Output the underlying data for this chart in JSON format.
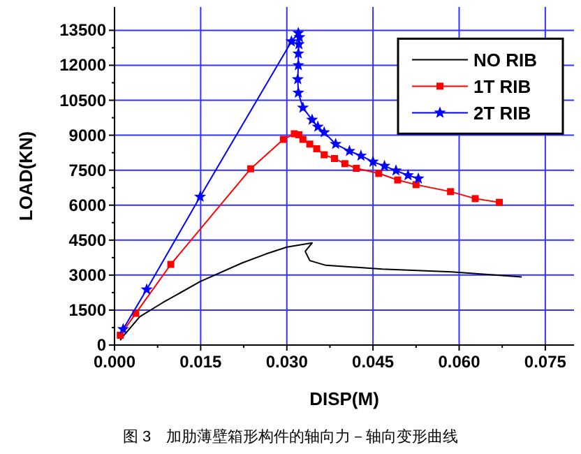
{
  "chart_data": {
    "type": "line",
    "xlabel": "DISP(M)",
    "ylabel": "LOAD(KN)",
    "xlim": [
      0,
      0.08
    ],
    "ylim": [
      0,
      14500
    ],
    "xticks": [
      {
        "value": 0,
        "label": "0.000"
      },
      {
        "value": 0.0075,
        "label": null
      },
      {
        "value": 0.015,
        "label": "0.015"
      },
      {
        "value": 0.0225,
        "label": null
      },
      {
        "value": 0.03,
        "label": "0.030"
      },
      {
        "value": 0.0375,
        "label": null
      },
      {
        "value": 0.045,
        "label": "0.045"
      },
      {
        "value": 0.0525,
        "label": null
      },
      {
        "value": 0.06,
        "label": "0.060"
      },
      {
        "value": 0.0675,
        "label": null
      },
      {
        "value": 0.075,
        "label": "0.075"
      }
    ],
    "yticks": [
      0,
      {
        "value": 750,
        "label": null
      },
      1500,
      {
        "value": 2250,
        "label": null
      },
      3000,
      {
        "value": 3750,
        "label": null
      },
      4500,
      {
        "value": 5250,
        "label": null
      },
      6000,
      {
        "value": 6750,
        "label": null
      },
      7500,
      {
        "value": 8250,
        "label": null
      },
      9000,
      {
        "value": 9750,
        "label": null
      },
      10500,
      {
        "value": 11250,
        "label": null
      },
      12000,
      {
        "value": 12750,
        "label": null
      },
      13500
    ],
    "grid": true,
    "legend": "top right",
    "series": [
      {
        "name": "NO RIB",
        "color": "#000000",
        "marker": "none",
        "x": [
          0.001,
          0.0013,
          0.0044,
          0.0084,
          0.0149,
          0.0222,
          0.0263,
          0.03,
          0.0344,
          0.0332,
          0.034,
          0.0368,
          0.0466,
          0.0587,
          0.0709
        ],
        "values": [
          200,
          320,
          1220,
          1820,
          2720,
          3520,
          3900,
          4200,
          4380,
          4020,
          3620,
          3420,
          3260,
          3140,
          2920
        ]
      },
      {
        "name": "1T RIB",
        "color": "#ff0000",
        "marker": "square",
        "x": [
          0.001,
          0.0037,
          0.0098,
          0.0237,
          0.0294,
          0.0313,
          0.0321,
          0.0328,
          0.034,
          0.0352,
          0.0365,
          0.0383,
          0.0401,
          0.0421,
          0.046,
          0.0493,
          0.0525,
          0.0585,
          0.0628,
          0.067
        ],
        "values": [
          420,
          1360,
          3460,
          7560,
          8820,
          9060,
          9020,
          8820,
          8620,
          8420,
          8160,
          8000,
          7780,
          7580,
          7360,
          7080,
          6880,
          6580,
          6280,
          6120
        ]
      },
      {
        "name": "2T RIB",
        "color": "#0000ff",
        "marker": "star",
        "x": [
          0.0015,
          0.0056,
          0.0149,
          0.0308,
          0.032,
          0.0322,
          0.0321,
          0.032,
          0.032,
          0.0319,
          0.032,
          0.0328,
          0.0344,
          0.0354,
          0.0365,
          0.0385,
          0.0409,
          0.0429,
          0.045,
          0.047,
          0.049,
          0.0511,
          0.0529
        ],
        "values": [
          680,
          2380,
          6360,
          13020,
          13380,
          13200,
          12900,
          12500,
          12000,
          11400,
          10820,
          10180,
          9660,
          9360,
          9120,
          8620,
          8320,
          8120,
          7860,
          7680,
          7480,
          7280,
          7140
        ]
      }
    ],
    "annotations": [
      "图 3　加肋薄壁箱形构件的轴向力－轴向变形曲线"
    ]
  }
}
